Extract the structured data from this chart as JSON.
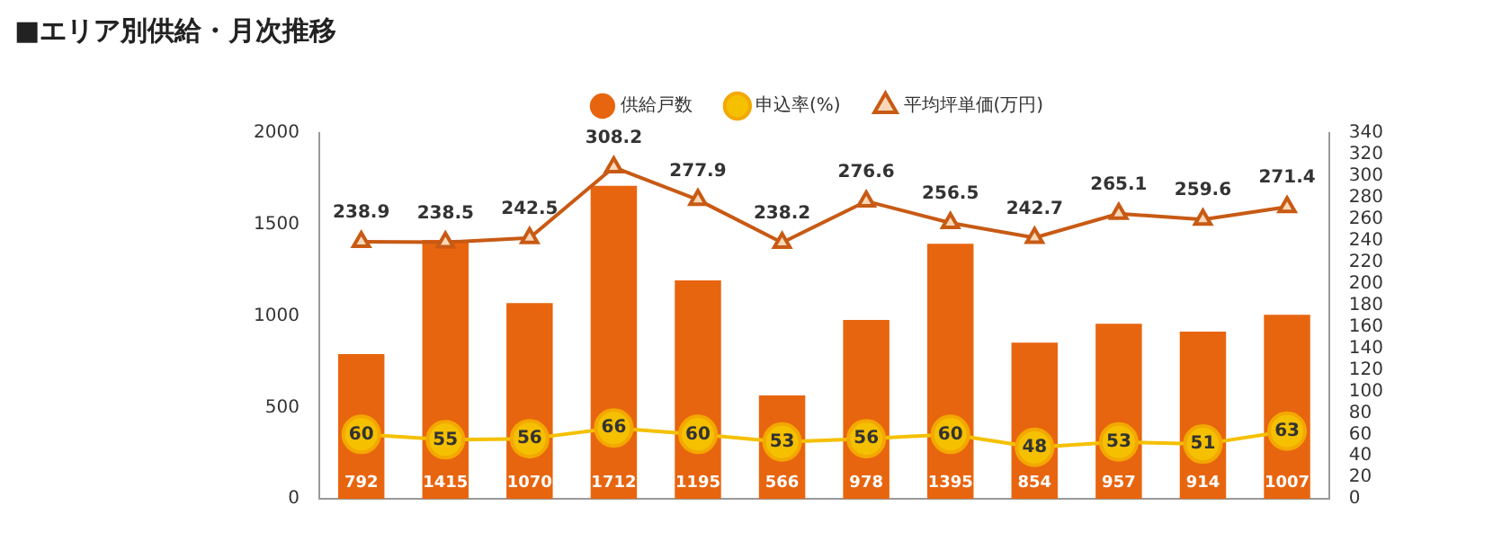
{
  "chart_data": {
    "type": "bar",
    "title": "■エリア別供給・月次推移",
    "categories": [
      null,
      null,
      null,
      null,
      null,
      null,
      null,
      null,
      null,
      null,
      null,
      null
    ],
    "series": [
      {
        "name": "供給戸数",
        "color": "#e8650f",
        "values": [
          792,
          1415,
          1070,
          1712,
          1195,
          566,
          978,
          1395,
          854,
          957,
          914,
          1007
        ]
      },
      {
        "name": "申込率(%)",
        "type": "line",
        "axis": "y2",
        "marker": "circle",
        "color": "#f5c000",
        "values": [
          60,
          55,
          56,
          66,
          60,
          53,
          56,
          60,
          48,
          53,
          51,
          63
        ]
      },
      {
        "name": "平均坪単価(万円)",
        "type": "line",
        "axis": "y2",
        "marker": "triangle",
        "color": "#c85a14",
        "values": [
          238.9,
          238.5,
          242.5,
          308.2,
          277.9,
          238.2,
          276.6,
          256.5,
          242.7,
          265.1,
          259.6,
          271.4
        ]
      }
    ],
    "ylim": [
      0,
      2000
    ],
    "yticks": [
      0,
      500,
      1000,
      1500,
      2000
    ],
    "y2lim": [
      0,
      340
    ],
    "y2ticks": [
      0,
      20,
      40,
      60,
      80,
      100,
      120,
      140,
      160,
      180,
      200,
      220,
      240,
      260,
      280,
      300,
      320,
      340
    ],
    "data_labels": true,
    "legend": "top",
    "grid": false
  }
}
